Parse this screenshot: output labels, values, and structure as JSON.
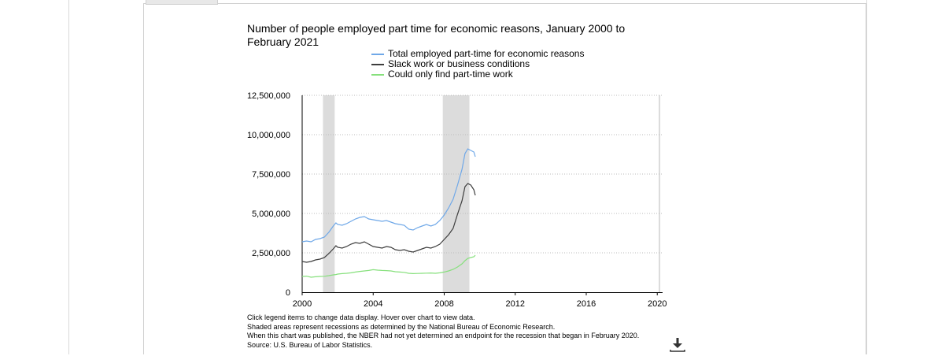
{
  "chart_data": {
    "type": "line",
    "title": "Number of people employed part time for economic reasons, January 2000 to February 2021",
    "xlabel": "",
    "ylabel": "",
    "xlim": [
      2000,
      2020.3
    ],
    "ylim": [
      0,
      12500000
    ],
    "x_ticks": [
      2000,
      2004,
      2008,
      2012,
      2016,
      2020
    ],
    "x_tick_labels": [
      "2000",
      "2004",
      "2008",
      "2012",
      "2016",
      "2020"
    ],
    "y_ticks": [
      0,
      2500000,
      5000000,
      7500000,
      10000000,
      12500000
    ],
    "y_tick_labels": [
      "0",
      "2,500,000",
      "5,000,000",
      "7,500,000",
      "10,000,000",
      "12,500,000"
    ],
    "grid": true,
    "legend_position": "top",
    "recessions": [
      {
        "start": 2001.17,
        "end": 2001.83
      },
      {
        "start": 2007.92,
        "end": 2009.42
      },
      {
        "start": 2020.08,
        "end": 2020.17
      }
    ],
    "series": [
      {
        "name": "Total employed part-time for economic reasons",
        "color": "#6fa8e8",
        "x": [
          2000.0,
          2000.25,
          2000.5,
          2000.75,
          2001.0,
          2001.25,
          2001.5,
          2001.75,
          2001.9,
          2002.0,
          2002.25,
          2002.5,
          2002.75,
          2003.0,
          2003.25,
          2003.5,
          2003.75,
          2004.0,
          2004.25,
          2004.5,
          2004.75,
          2005.0,
          2005.25,
          2005.5,
          2005.75,
          2006.0,
          2006.25,
          2006.5,
          2006.75,
          2007.0,
          2007.25,
          2007.5,
          2007.75,
          2008.0,
          2008.25,
          2008.5,
          2008.75,
          2009.0,
          2009.17,
          2009.33,
          2009.5,
          2009.67,
          2009.75
        ],
        "y": [
          3200000,
          3250000,
          3200000,
          3350000,
          3400000,
          3500000,
          3800000,
          4200000,
          4400000,
          4300000,
          4250000,
          4350000,
          4500000,
          4650000,
          4750000,
          4800000,
          4650000,
          4600000,
          4550000,
          4500000,
          4550000,
          4450000,
          4350000,
          4300000,
          4250000,
          4000000,
          3950000,
          4100000,
          4200000,
          4300000,
          4200000,
          4300000,
          4550000,
          4900000,
          5350000,
          5900000,
          6800000,
          7800000,
          8800000,
          9100000,
          9000000,
          8900000,
          8600000
        ]
      },
      {
        "name": "Slack work or business conditions",
        "color": "#3d3d3d",
        "x": [
          2000.0,
          2000.25,
          2000.5,
          2000.75,
          2001.0,
          2001.25,
          2001.5,
          2001.75,
          2001.9,
          2002.0,
          2002.25,
          2002.5,
          2002.75,
          2003.0,
          2003.25,
          2003.5,
          2003.75,
          2004.0,
          2004.25,
          2004.5,
          2004.75,
          2005.0,
          2005.25,
          2005.5,
          2005.75,
          2006.0,
          2006.25,
          2006.5,
          2006.75,
          2007.0,
          2007.25,
          2007.5,
          2007.75,
          2008.0,
          2008.25,
          2008.5,
          2008.75,
          2009.0,
          2009.17,
          2009.33,
          2009.5,
          2009.67,
          2009.75
        ],
        "y": [
          1950000,
          1900000,
          1950000,
          2050000,
          2100000,
          2200000,
          2450000,
          2750000,
          2950000,
          2850000,
          2800000,
          2900000,
          3050000,
          3150000,
          3100000,
          3200000,
          3050000,
          2900000,
          2850000,
          2800000,
          2900000,
          2850000,
          2700000,
          2650000,
          2700000,
          2600000,
          2550000,
          2650000,
          2750000,
          2850000,
          2800000,
          2900000,
          3050000,
          3350000,
          3650000,
          4050000,
          4950000,
          5800000,
          6700000,
          6900000,
          6800000,
          6500000,
          6150000
        ]
      },
      {
        "name": "Could only find part-time work",
        "color": "#86e07c",
        "x": [
          2000.0,
          2000.25,
          2000.5,
          2000.75,
          2001.0,
          2001.25,
          2001.5,
          2001.75,
          2001.9,
          2002.0,
          2002.25,
          2002.5,
          2002.75,
          2003.0,
          2003.25,
          2003.5,
          2003.75,
          2004.0,
          2004.25,
          2004.5,
          2004.75,
          2005.0,
          2005.25,
          2005.5,
          2005.75,
          2006.0,
          2006.25,
          2006.5,
          2006.75,
          2007.0,
          2007.25,
          2007.5,
          2007.75,
          2008.0,
          2008.25,
          2008.5,
          2008.75,
          2009.0,
          2009.17,
          2009.33,
          2009.5,
          2009.67,
          2009.75
        ],
        "y": [
          1000000,
          1020000,
          950000,
          980000,
          1000000,
          1010000,
          1050000,
          1100000,
          1120000,
          1150000,
          1180000,
          1200000,
          1230000,
          1280000,
          1320000,
          1350000,
          1380000,
          1430000,
          1400000,
          1380000,
          1370000,
          1350000,
          1300000,
          1280000,
          1260000,
          1200000,
          1180000,
          1190000,
          1200000,
          1210000,
          1220000,
          1200000,
          1230000,
          1280000,
          1350000,
          1450000,
          1600000,
          1800000,
          2000000,
          2150000,
          2200000,
          2250000,
          2350000
        ]
      }
    ]
  },
  "notes": [
    "Click legend items to change data display. Hover over chart to view data.",
    "Shaded areas represent recessions as determined by the National Bureau of Economic Research.",
    "When this chart was published, the NBER had not yet determined an endpoint for the recession that began in February 2020.",
    "Source: U.S. Bureau of Labor Statistics."
  ],
  "icons": {
    "download": "download-icon"
  }
}
